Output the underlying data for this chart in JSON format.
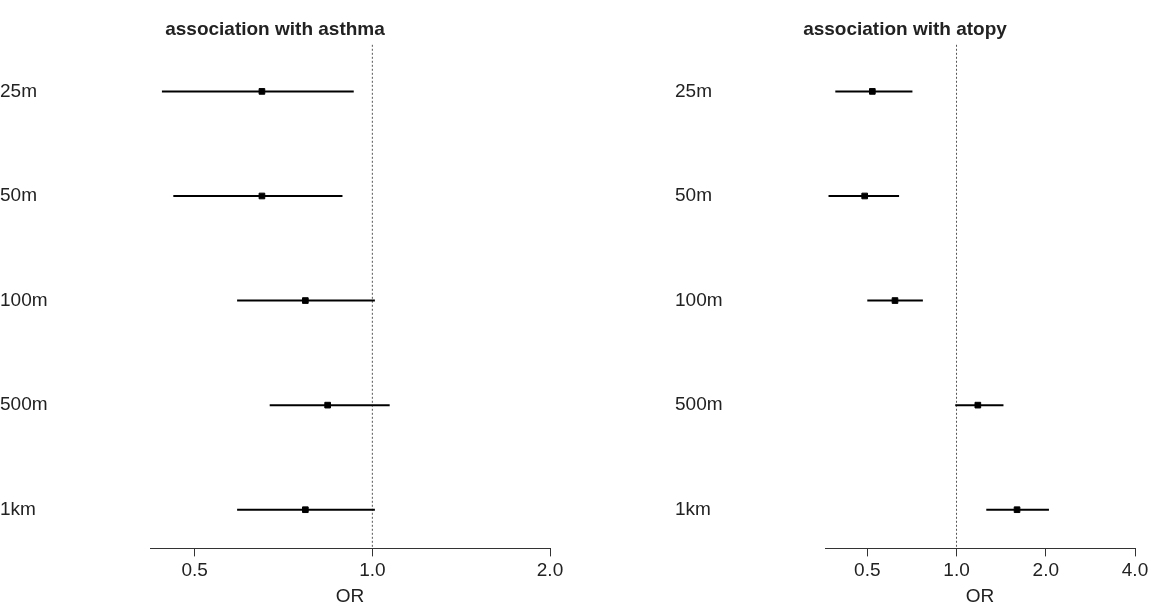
{
  "chart_data": [
    {
      "type": "scatter",
      "title": "association with asthma",
      "xlabel": "OR",
      "orientation": "horizontal",
      "categories": [
        "25m",
        "50m",
        "100m",
        "500m",
        "1km"
      ],
      "values": [
        0.65,
        0.65,
        0.77,
        0.84,
        0.77
      ],
      "errors": [
        [
          0.44,
          0.93
        ],
        [
          0.46,
          0.89
        ],
        [
          0.59,
          1.01
        ],
        [
          0.67,
          1.07
        ],
        [
          0.59,
          1.01
        ]
      ],
      "color": "#000000",
      "marker": "square",
      "log": "x",
      "xlim": [
        0.42,
        2.0
      ],
      "xticks": [
        0.5,
        {
          "value": 1,
          "label": "1.0"
        },
        {
          "value": 2,
          "label": "2.0"
        }
      ],
      "ref_lines": [
        {
          "axis": "x",
          "value": 1,
          "line_style": "dotted",
          "color": "#555555"
        }
      ],
      "grid": false,
      "legend": false
    },
    {
      "type": "scatter",
      "title": "association with atopy",
      "xlabel": "OR",
      "orientation": "horizontal",
      "categories": [
        "25m",
        "50m",
        "100m",
        "500m",
        "1km"
      ],
      "values": [
        0.52,
        0.49,
        0.62,
        1.18,
        1.6
      ],
      "errors": [
        [
          0.39,
          0.71
        ],
        [
          0.37,
          0.64
        ],
        [
          0.5,
          0.77
        ],
        [
          0.99,
          1.44
        ],
        [
          1.26,
          2.05
        ]
      ],
      "color": "#000000",
      "marker": "square",
      "log": "x",
      "xlim": [
        0.36,
        4.0
      ],
      "xticks": [
        0.5,
        {
          "value": 1,
          "label": "1.0"
        },
        {
          "value": 2,
          "label": "2.0"
        },
        {
          "value": 4,
          "label": "4.0"
        }
      ],
      "ref_lines": [
        {
          "axis": "x",
          "value": 1,
          "line_style": "dotted",
          "color": "#555555"
        }
      ],
      "grid": false,
      "legend": false
    }
  ]
}
